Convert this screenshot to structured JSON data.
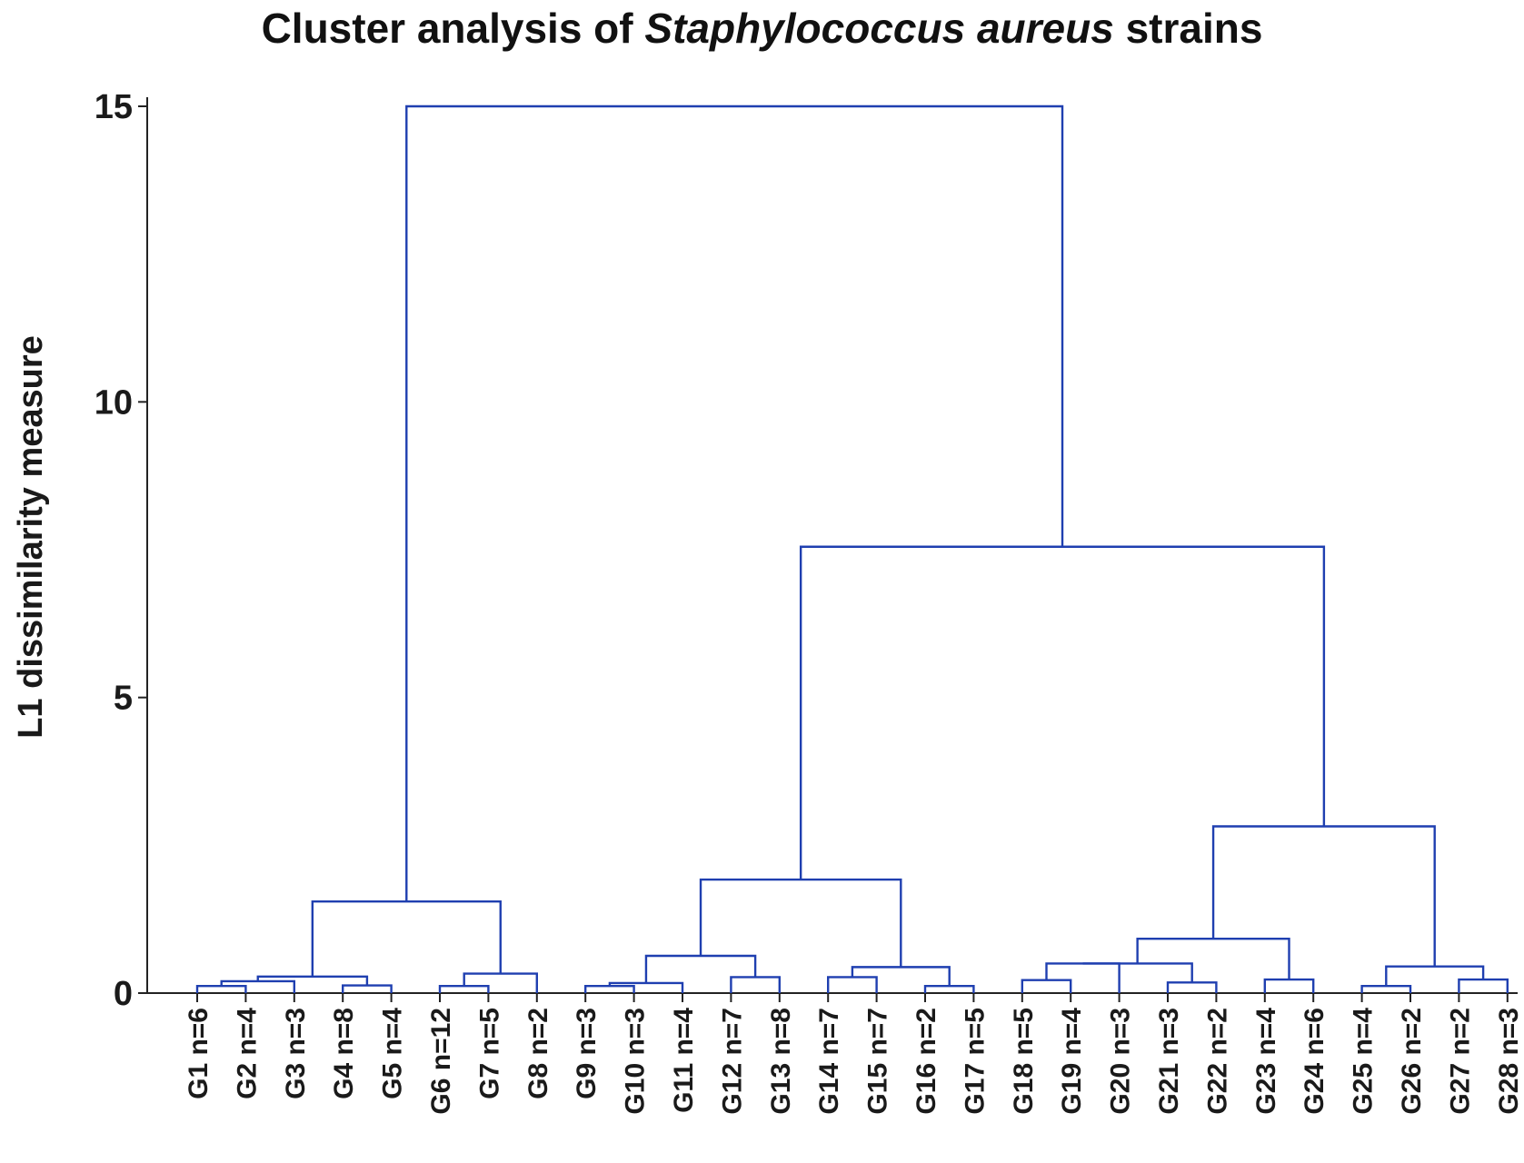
{
  "chart_data": {
    "type": "dendrogram",
    "title_parts": [
      "Cluster analysis of ",
      "Staphylococcus aureus",
      " strains"
    ],
    "ylabel": "L1 dissimilarity measure",
    "ylim": [
      0,
      15
    ],
    "yticks": [
      "0",
      "5",
      "10",
      "15"
    ],
    "line_color": "#1f3fb0",
    "leaves": [
      "G1 n=6",
      "G2 n=4",
      "G3 n=3",
      "G4 n=8",
      "G5 n=4",
      "G6 n=12",
      "G7 n=5",
      "G8 n=2",
      "G9 n=3",
      "G10 n=3",
      "G11 n=4",
      "G12 n=7",
      "G13 n=8",
      "G14 n=7",
      "G15 n=7",
      "G16 n=2",
      "G17 n=5",
      "G18 n=5",
      "G19 n=4",
      "G20 n=3",
      "G21 n=3",
      "G22 n=2",
      "G23 n=4",
      "G24 n=6",
      "G25 n=4",
      "G26 n=2",
      "G27 n=2",
      "G28 n=3"
    ],
    "merges": [
      {
        "a": 1,
        "b": 2,
        "height": 0.12
      },
      {
        "a": 29,
        "b": 3,
        "height": 0.2
      },
      {
        "a": 4,
        "b": 5,
        "height": 0.13
      },
      {
        "a": 30,
        "b": 31,
        "height": 0.28
      },
      {
        "a": 6,
        "b": 7,
        "height": 0.12
      },
      {
        "a": 33,
        "b": 8,
        "height": 0.33
      },
      {
        "a": 32,
        "b": 34,
        "height": 1.55
      },
      {
        "a": 9,
        "b": 10,
        "height": 0.12
      },
      {
        "a": 36,
        "b": 11,
        "height": 0.17
      },
      {
        "a": 12,
        "b": 13,
        "height": 0.27
      },
      {
        "a": 37,
        "b": 38,
        "height": 0.63
      },
      {
        "a": 14,
        "b": 15,
        "height": 0.27
      },
      {
        "a": 16,
        "b": 17,
        "height": 0.12
      },
      {
        "a": 40,
        "b": 41,
        "height": 0.44
      },
      {
        "a": 39,
        "b": 42,
        "height": 1.92
      },
      {
        "a": 18,
        "b": 19,
        "height": 0.22
      },
      {
        "a": 44,
        "b": 20,
        "height": 0.5
      },
      {
        "a": 21,
        "b": 22,
        "height": 0.18
      },
      {
        "a": 45,
        "b": 46,
        "height": 0.5
      },
      {
        "a": 23,
        "b": 24,
        "height": 0.23
      },
      {
        "a": 47,
        "b": 48,
        "height": 0.92
      },
      {
        "a": 25,
        "b": 26,
        "height": 0.12
      },
      {
        "a": 27,
        "b": 28,
        "height": 0.23
      },
      {
        "a": 50,
        "b": 51,
        "height": 0.45
      },
      {
        "a": 49,
        "b": 52,
        "height": 2.82
      },
      {
        "a": 43,
        "b": 53,
        "height": 7.55
      },
      {
        "a": 35,
        "b": 54,
        "height": 15.0
      }
    ]
  }
}
